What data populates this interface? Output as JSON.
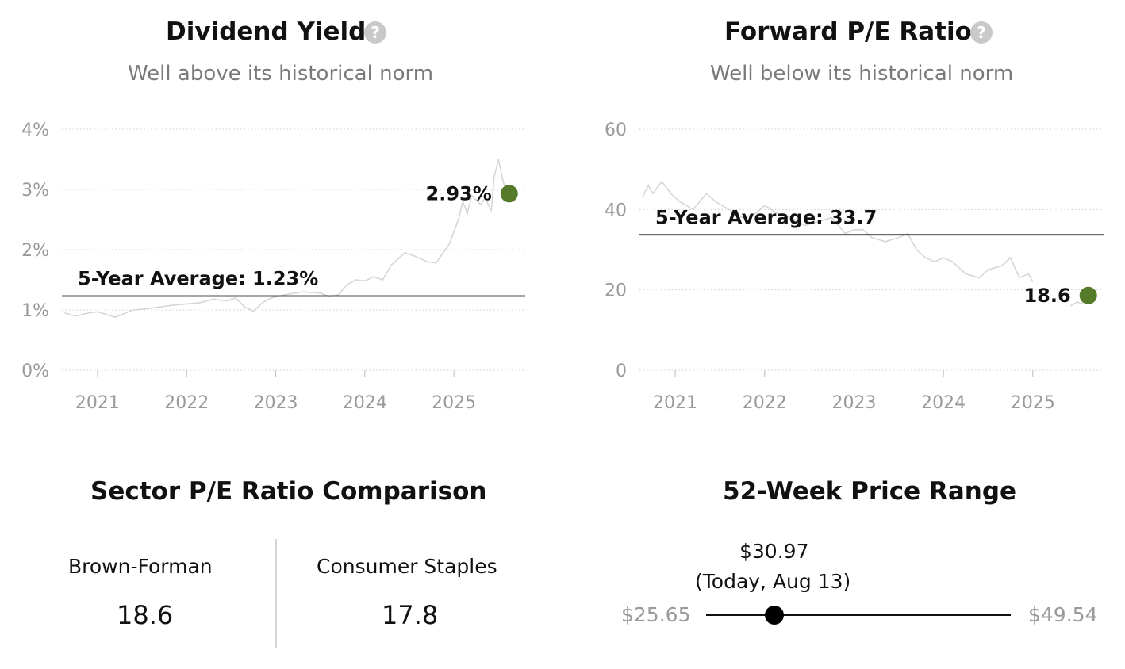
{
  "dividend_panel": {
    "title": "Dividend Yield",
    "subtitle": "Well above its historical norm",
    "help_icon": "question-circle-icon"
  },
  "pe_panel": {
    "title": "Forward P/E Ratio",
    "subtitle": "Well below its historical norm",
    "help_icon": "question-circle-icon"
  },
  "sector_panel": {
    "title": "Sector P/E Ratio Comparison",
    "company_label": "Brown-Forman",
    "company_value": "18.6",
    "sector_label": "Consumer Staples",
    "sector_value": "17.8"
  },
  "range_panel": {
    "title": "52-Week Price Range",
    "low": "$25.65",
    "high": "$49.54",
    "current_price": "$30.97",
    "current_date": "(Today, Aug 13)",
    "position_fraction": 0.2231
  },
  "chart_data": [
    {
      "type": "line",
      "ylim": [
        0,
        4
      ],
      "xlim": [
        2020.6,
        2025.8
      ],
      "yticks": [
        0,
        1,
        2,
        3,
        4
      ],
      "ytick_labels": [
        "0%",
        "1%",
        "2%",
        "3%",
        "4%"
      ],
      "xticks": [
        2021,
        2022,
        2023,
        2024,
        2025
      ],
      "xtick_labels": [
        "2021",
        "2022",
        "2023",
        "2024",
        "2025"
      ],
      "grid": true,
      "average": {
        "value": 1.23,
        "label": "5-Year Average: 1.23%"
      },
      "current": {
        "x": 2025.62,
        "y": 2.93,
        "label": "2.93%"
      },
      "colors": {
        "line": "#d6d6d6",
        "current_dot": "#547a2a",
        "average_line": "#111111",
        "grid": "#cfcfcf",
        "tick_text": "#9a9a9a"
      },
      "series": [
        {
          "x": [
            2020.63,
            2020.75,
            2020.9,
            2021.0,
            2021.2,
            2021.4,
            2021.55,
            2021.7,
            2021.85,
            2022.0,
            2022.15,
            2022.3,
            2022.45,
            2022.55,
            2022.65,
            2022.75,
            2022.85,
            2022.95,
            2023.1,
            2023.3,
            2023.5,
            2023.6,
            2023.7,
            2023.8,
            2023.9,
            2024.0,
            2024.1,
            2024.2,
            2024.3,
            2024.45,
            2024.55,
            2024.7,
            2024.8,
            2024.95,
            2025.0,
            2025.05,
            2025.1,
            2025.15,
            2025.2,
            2025.3,
            2025.35,
            2025.42,
            2025.45,
            2025.5,
            2025.55,
            2025.58
          ],
          "y": [
            0.95,
            0.9,
            0.95,
            0.97,
            0.88,
            1.0,
            1.02,
            1.05,
            1.08,
            1.1,
            1.12,
            1.18,
            1.15,
            1.2,
            1.05,
            0.98,
            1.12,
            1.2,
            1.25,
            1.3,
            1.28,
            1.22,
            1.25,
            1.42,
            1.5,
            1.48,
            1.55,
            1.5,
            1.75,
            1.95,
            1.9,
            1.8,
            1.78,
            2.1,
            2.3,
            2.5,
            2.8,
            2.6,
            2.9,
            2.75,
            2.85,
            2.65,
            3.2,
            3.5,
            3.15,
            3.0
          ]
        }
      ]
    },
    {
      "type": "line",
      "ylim": [
        0,
        60
      ],
      "xlim": [
        2020.6,
        2025.8
      ],
      "yticks": [
        0,
        20,
        40,
        60
      ],
      "ytick_labels": [
        "0",
        "20",
        "40",
        "60"
      ],
      "xticks": [
        2021,
        2022,
        2023,
        2024,
        2025
      ],
      "xtick_labels": [
        "2021",
        "2022",
        "2023",
        "2024",
        "2025"
      ],
      "grid": true,
      "average": {
        "value": 33.7,
        "label": "5-Year Average: 33.7"
      },
      "current": {
        "x": 2025.62,
        "y": 18.6,
        "label": "18.6"
      },
      "colors": {
        "line": "#d6d6d6",
        "current_dot": "#547a2a",
        "average_line": "#111111",
        "grid": "#cfcfcf",
        "tick_text": "#9a9a9a"
      },
      "series": [
        {
          "x": [
            2020.63,
            2020.7,
            2020.75,
            2020.85,
            2020.95,
            2021.05,
            2021.2,
            2021.35,
            2021.45,
            2021.6,
            2021.75,
            2021.9,
            2022.0,
            2022.15,
            2022.3,
            2022.45,
            2022.6,
            2022.75,
            2022.9,
            2023.0,
            2023.1,
            2023.2,
            2023.35,
            2023.5,
            2023.6,
            2023.7,
            2023.8,
            2023.9,
            2024.0,
            2024.1,
            2024.25,
            2024.4,
            2024.5,
            2024.65,
            2024.75,
            2024.85,
            2024.95,
            2025.0
          ],
          "y": [
            43,
            46,
            44,
            47,
            44,
            42,
            40,
            44,
            42,
            40,
            38,
            39,
            41,
            39,
            38,
            36,
            37,
            38,
            34,
            35,
            35,
            33,
            32,
            33,
            34,
            30,
            28,
            27,
            28,
            27,
            24,
            23,
            25,
            26,
            28,
            23,
            24,
            22
          ]
        },
        {
          "x": [
            2025.42,
            2025.5,
            2025.55,
            2025.6
          ],
          "y": [
            16,
            17,
            16.5,
            18.6
          ]
        }
      ]
    }
  ]
}
